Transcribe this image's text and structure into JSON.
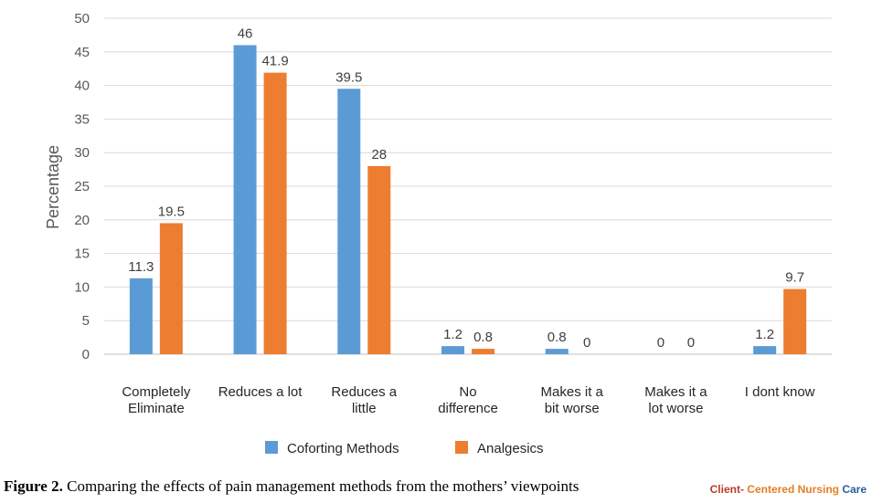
{
  "chart_data": {
    "type": "bar",
    "ylabel": "Percentage",
    "ylim": [
      0,
      50
    ],
    "yticks": [
      0,
      5,
      10,
      15,
      20,
      25,
      30,
      35,
      40,
      45,
      50
    ],
    "categories": [
      [
        "Completely",
        "Eliminate"
      ],
      [
        "Reduces a lot"
      ],
      [
        "Reduces a",
        "little"
      ],
      [
        "No",
        "difference"
      ],
      [
        "Makes it a",
        "bit worse"
      ],
      [
        "Makes it a",
        "lot worse"
      ],
      [
        "I dont know"
      ]
    ],
    "series": [
      {
        "name": "Coforting Methods",
        "color": "#5b9bd5",
        "values": [
          11.3,
          46,
          39.5,
          1.2,
          0.8,
          0,
          1.2
        ]
      },
      {
        "name": "Analgesics",
        "color": "#ed7d31",
        "values": [
          19.5,
          41.9,
          28,
          0.8,
          0,
          0,
          9.7
        ]
      }
    ],
    "grid": true,
    "legend": "bottom"
  },
  "caption": {
    "label": "Figure 2.",
    "text": " Comparing the effects of pain management methods from the mothers’ viewpoints"
  },
  "brand": {
    "part1": "Client- ",
    "part2": "Centered ",
    "part3": "Nursing ",
    "part4": "Care"
  }
}
